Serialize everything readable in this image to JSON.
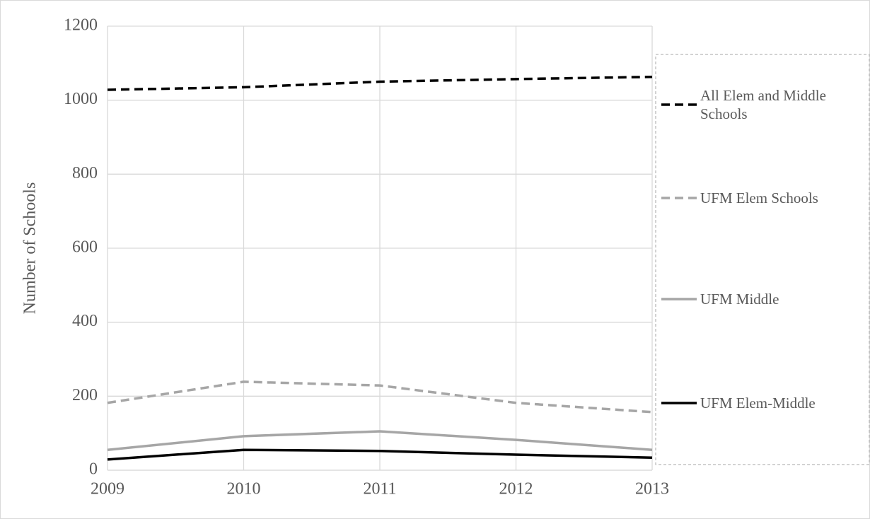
{
  "chart_data": {
    "type": "line",
    "y_label": "Number of Schools",
    "x": [
      2009,
      2010,
      2011,
      2012,
      2013
    ],
    "xlim": [
      2009,
      2013
    ],
    "xticks": [
      2009,
      2010,
      2011,
      2012,
      2013
    ],
    "ylim": [
      0,
      1200
    ],
    "yticks": [
      0,
      200,
      400,
      600,
      800,
      1000,
      1200
    ],
    "grid": true,
    "legend": "right",
    "series": [
      {
        "name": "All Elem and Middle Schools",
        "color": "#000000",
        "dash": true,
        "values": [
          1028,
          1035,
          1050,
          1057,
          1063
        ]
      },
      {
        "name": "UFM Elem Schools",
        "color": "#a6a6a6",
        "dash": true,
        "values": [
          182,
          239,
          229,
          182,
          157
        ]
      },
      {
        "name": "UFM Middle",
        "color": "#a6a6a6",
        "dash": false,
        "values": [
          55,
          92,
          105,
          82,
          55
        ]
      },
      {
        "name": "UFM Elem-Middle",
        "color": "#000000",
        "dash": false,
        "values": [
          29,
          55,
          52,
          42,
          34
        ]
      }
    ]
  }
}
